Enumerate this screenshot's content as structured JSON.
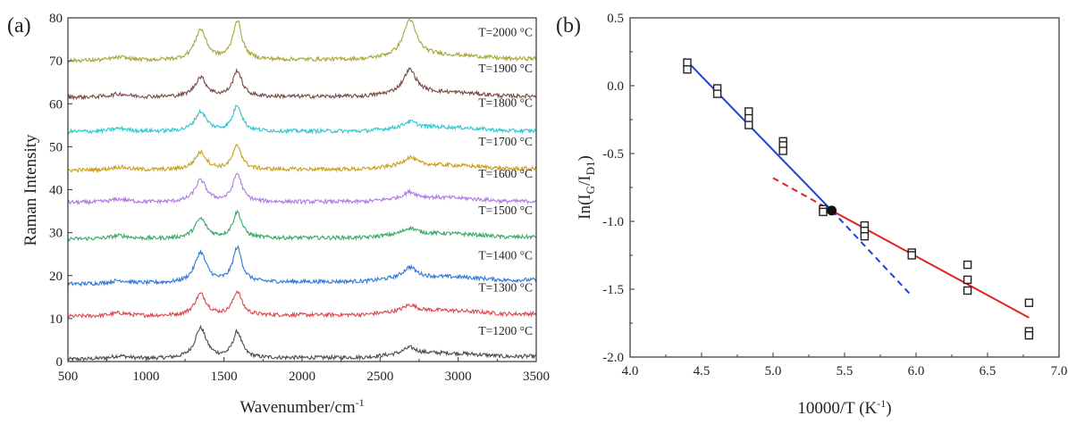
{
  "chart_data": [
    {
      "type": "line",
      "panel_label": "(a)",
      "xlabel": "Wavenumber/cm",
      "xlabel_sup": "-1",
      "ylabel": "Raman Intensity",
      "xlim": [
        500,
        3500
      ],
      "ylim": [
        0,
        80
      ],
      "xticks": [
        "500",
        "1000",
        "1500",
        "2000",
        "2500",
        "3000",
        "3500"
      ],
      "yticks": [
        "0",
        "10",
        "20",
        "30",
        "40",
        "50",
        "60",
        "70",
        "80"
      ],
      "series": [
        {
          "name": "T=1200 °C",
          "color": "#4d4d4d",
          "base": 0.5,
          "slope": 0.7,
          "d": 7,
          "g": 6,
          "d2": 1.5
        },
        {
          "name": "T=1300 °C",
          "color": "#e0474c",
          "base": 10.5,
          "slope": 0.6,
          "d": 5,
          "g": 5.5,
          "d2": 1.5
        },
        {
          "name": "T=1400 °C",
          "color": "#2f77d8",
          "base": 18.0,
          "slope": 1.0,
          "d": 7,
          "g": 8,
          "d2": 2.5
        },
        {
          "name": "T=1500 °C",
          "color": "#3aa86a",
          "base": 28.5,
          "slope": 0.5,
          "d": 4.5,
          "g": 6,
          "d2": 1.5
        },
        {
          "name": "T=1600 °C",
          "color": "#b07be0",
          "base": 37.0,
          "slope": 0.3,
          "d": 5,
          "g": 6.5,
          "d2": 1.5
        },
        {
          "name": "T=1700 °C",
          "color": "#c9a01c",
          "base": 44.5,
          "slope": 0.4,
          "d": 4,
          "g": 5.5,
          "d2": 2
        },
        {
          "name": "T=1800 °C",
          "color": "#2ec8d0",
          "base": 53.5,
          "slope": 0.2,
          "d": 4.5,
          "g": 6,
          "d2": 1.5
        },
        {
          "name": "T=1900 °C",
          "color": "#7a4a46",
          "base": 61.5,
          "slope": 0.3,
          "d": 4.5,
          "g": 6,
          "d2": 5.5
        },
        {
          "name": "T=2000 °C",
          "color": "#a8a838",
          "base": 70.0,
          "slope": 0.5,
          "d": 7,
          "g": 9,
          "d2": 8.5
        }
      ]
    },
    {
      "type": "scatter",
      "panel_label": "(b)",
      "xlabel": "10000/T (K",
      "xlabel_sup": "-1",
      "xlabel_end": ")",
      "ylabel_parts": [
        "In(I",
        "G",
        "/I",
        "D1",
        ")"
      ],
      "xlim": [
        4.0,
        7.0
      ],
      "ylim": [
        -2.0,
        0.5
      ],
      "xticks": [
        "4.0",
        "4.5",
        "5.0",
        "5.5",
        "6.0",
        "6.5",
        "7.0"
      ],
      "yticks": [
        "-2.0",
        "-1.5",
        "-1.0",
        "-0.5",
        "0.0",
        "0.5"
      ],
      "points": [
        [
          4.4,
          0.17
        ],
        [
          4.4,
          0.12
        ],
        [
          4.61,
          -0.02
        ],
        [
          4.61,
          -0.06
        ],
        [
          4.83,
          -0.19
        ],
        [
          4.83,
          -0.24
        ],
        [
          4.83,
          -0.29
        ],
        [
          5.07,
          -0.41
        ],
        [
          5.07,
          -0.44
        ],
        [
          5.07,
          -0.48
        ],
        [
          5.35,
          -0.91
        ],
        [
          5.35,
          -0.93
        ],
        [
          5.64,
          -1.03
        ],
        [
          5.64,
          -1.07
        ],
        [
          5.64,
          -1.11
        ],
        [
          5.97,
          -1.23
        ],
        [
          5.97,
          -1.25
        ],
        [
          6.36,
          -1.32
        ],
        [
          6.36,
          -1.43
        ],
        [
          6.36,
          -1.51
        ],
        [
          6.79,
          -1.6
        ],
        [
          6.79,
          -1.81
        ],
        [
          6.79,
          -1.84
        ]
      ],
      "intersection": [
        5.41,
        -0.92
      ],
      "fit_lines": [
        {
          "name": "high-T fit",
          "color": "#1f3fd8",
          "solid": [
            [
              4.38,
              0.2
            ],
            [
              5.41,
              -0.92
            ]
          ],
          "dashed": [
            [
              5.41,
              -0.92
            ],
            [
              5.97,
              -1.55
            ]
          ]
        },
        {
          "name": "low-T fit",
          "color": "#e0201e",
          "solid": [
            [
              5.41,
              -0.92
            ],
            [
              6.79,
              -1.71
            ]
          ],
          "dashed": [
            [
              5.0,
              -0.68
            ],
            [
              5.41,
              -0.92
            ]
          ]
        }
      ]
    }
  ]
}
